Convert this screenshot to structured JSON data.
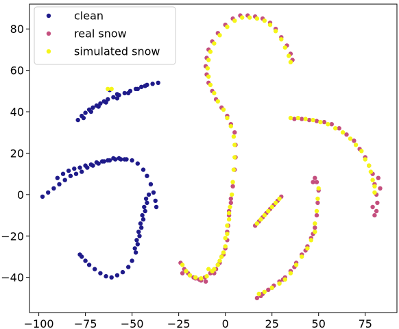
{
  "chart_data": {
    "type": "scatter",
    "title": "",
    "xlabel": "",
    "ylabel": "",
    "xlim": [
      -105,
      92
    ],
    "ylim": [
      -57,
      92
    ],
    "xticks": [
      -100,
      -75,
      -50,
      -25,
      0,
      25,
      50,
      75
    ],
    "yticks": [
      -40,
      -20,
      0,
      20,
      40,
      60,
      80
    ],
    "xtick_labels": [
      "−100",
      "−75",
      "−50",
      "−25",
      "0",
      "25",
      "50",
      "75"
    ],
    "ytick_labels": [
      "−40",
      "−20",
      "0",
      "20",
      "40",
      "60",
      "80"
    ],
    "grid": false,
    "legend_position": "top-left",
    "series": [
      {
        "name": "clean",
        "color": "#1f1b8a",
        "points": [
          [
            -98,
            -1
          ],
          [
            -95,
            1
          ],
          [
            -92,
            3
          ],
          [
            -89,
            5
          ],
          [
            -86,
            7
          ],
          [
            -83,
            9
          ],
          [
            -80,
            10
          ],
          [
            -77,
            11
          ],
          [
            -74,
            13
          ],
          [
            -71,
            14
          ],
          [
            -68,
            15
          ],
          [
            -65,
            16
          ],
          [
            -62,
            16.5
          ],
          [
            -59,
            17
          ],
          [
            -56,
            17
          ],
          [
            -53,
            17
          ],
          [
            -50,
            16.5
          ],
          [
            -47,
            15
          ],
          [
            -44,
            12
          ],
          [
            -42,
            9
          ],
          [
            -40,
            5
          ],
          [
            -38.5,
            1
          ],
          [
            -37.5,
            -3
          ],
          [
            -37,
            -6
          ],
          [
            -90,
            8
          ],
          [
            -87,
            10
          ],
          [
            -84,
            11.5
          ],
          [
            -81,
            12.5
          ],
          [
            -78,
            13
          ],
          [
            -75,
            14
          ],
          [
            -72,
            14.5
          ],
          [
            -69,
            15.5
          ],
          [
            -66,
            16
          ],
          [
            -63,
            16.5
          ],
          [
            -60,
            17.5
          ],
          [
            -57,
            17.5
          ],
          [
            -54,
            17
          ],
          [
            -41,
            0
          ],
          [
            -42,
            -4
          ],
          [
            -43,
            -8
          ],
          [
            -44,
            -12
          ],
          [
            -45,
            -16
          ],
          [
            -46,
            -20
          ],
          [
            -47,
            -24
          ],
          [
            -48,
            -28
          ],
          [
            -50,
            -32
          ],
          [
            -52,
            -35
          ],
          [
            -55,
            -37.5
          ],
          [
            -58,
            -39
          ],
          [
            -61,
            -40
          ],
          [
            -64,
            -39.5
          ],
          [
            -67,
            -38
          ],
          [
            -70,
            -36
          ],
          [
            -73,
            -34
          ],
          [
            -75,
            -32
          ],
          [
            -77,
            -30
          ],
          [
            -78,
            -29
          ],
          [
            -42.5,
            -2
          ],
          [
            -43.5,
            -6
          ],
          [
            -44.5,
            -10
          ],
          [
            -45.5,
            -14
          ],
          [
            -46.5,
            -18
          ],
          [
            -47.5,
            -22
          ],
          [
            -48.5,
            -26
          ],
          [
            -79,
            36
          ],
          [
            -77,
            38
          ],
          [
            -75,
            39.5
          ],
          [
            -73,
            41
          ],
          [
            -71,
            42
          ],
          [
            -69,
            43
          ],
          [
            -67,
            44
          ],
          [
            -65,
            45
          ],
          [
            -63,
            46
          ],
          [
            -60,
            47
          ],
          [
            -57,
            48
          ],
          [
            -54,
            49
          ],
          [
            -51,
            50
          ],
          [
            -48,
            51
          ],
          [
            -45,
            52
          ],
          [
            -42,
            53
          ],
          [
            -39,
            53.5
          ],
          [
            -36,
            54
          ],
          [
            -76,
            37
          ],
          [
            -72,
            40
          ],
          [
            -68,
            42.5
          ],
          [
            -64,
            44.5
          ],
          [
            -58,
            46.5
          ],
          [
            -52,
            49
          ],
          [
            -47,
            51
          ],
          [
            -43,
            52.5
          ],
          [
            -62,
            50.5
          ],
          [
            -58,
            48.5
          ]
        ]
      },
      {
        "name": "real snow",
        "color": "#c44f7e",
        "points": [
          [
            -24,
            -33
          ],
          [
            -22,
            -36
          ],
          [
            -20,
            -38
          ],
          [
            -17,
            -40
          ],
          [
            -14,
            -41
          ],
          [
            -11,
            -40
          ],
          [
            -8,
            -38
          ],
          [
            -5,
            -36
          ],
          [
            -3,
            -33
          ],
          [
            -1,
            -29
          ],
          [
            1,
            -22
          ],
          [
            1.5,
            -15
          ],
          [
            2,
            -8
          ],
          [
            3,
            -2
          ],
          [
            4,
            4
          ],
          [
            5,
            12
          ],
          [
            5.5,
            18
          ],
          [
            5.5,
            24
          ],
          [
            5,
            30
          ],
          [
            3,
            34
          ],
          [
            1,
            38
          ],
          [
            -2,
            42
          ],
          [
            -5,
            46
          ],
          [
            -7,
            50
          ],
          [
            -9,
            54
          ],
          [
            -10,
            58
          ],
          [
            -10.5,
            62
          ],
          [
            -10,
            66
          ],
          [
            -9,
            70
          ],
          [
            -7,
            74
          ],
          [
            -4,
            78
          ],
          [
            0,
            82
          ],
          [
            4,
            85
          ],
          [
            8,
            86.5
          ],
          [
            12,
            86.5
          ],
          [
            16,
            86
          ],
          [
            20,
            85
          ],
          [
            24,
            83
          ],
          [
            27,
            80
          ],
          [
            30,
            76
          ],
          [
            33,
            72
          ],
          [
            35,
            68
          ],
          [
            36,
            65
          ],
          [
            -6,
            -38
          ],
          [
            -4,
            -34
          ],
          [
            -2,
            -30
          ],
          [
            0,
            -26
          ],
          [
            1,
            -18
          ],
          [
            2,
            -10
          ],
          [
            3,
            -4
          ],
          [
            37,
            36.5
          ],
          [
            41,
            36.5
          ],
          [
            45,
            36
          ],
          [
            49,
            35.5
          ],
          [
            53,
            35
          ],
          [
            57,
            34
          ],
          [
            61,
            32
          ],
          [
            65,
            29
          ],
          [
            69,
            26
          ],
          [
            72,
            22
          ],
          [
            75,
            18
          ],
          [
            77,
            14
          ],
          [
            79,
            10
          ],
          [
            80,
            5
          ],
          [
            81,
            0
          ],
          [
            81.5,
            -4
          ],
          [
            81,
            -8
          ],
          [
            80,
            -10
          ],
          [
            82,
            8
          ],
          [
            83,
            3
          ],
          [
            79,
            -6
          ],
          [
            17,
            -50
          ],
          [
            20,
            -48
          ],
          [
            23,
            -46
          ],
          [
            26,
            -44
          ],
          [
            29,
            -42
          ],
          [
            32,
            -40
          ],
          [
            35,
            -37
          ],
          [
            38,
            -33
          ],
          [
            41,
            -29
          ],
          [
            44,
            -25
          ],
          [
            46,
            -21
          ],
          [
            48,
            -16
          ],
          [
            49,
            -10
          ],
          [
            49.5,
            -4
          ],
          [
            50,
            2
          ],
          [
            49,
            6
          ],
          [
            48,
            8
          ],
          [
            47,
            6
          ],
          [
            19,
            -49
          ],
          [
            25,
            -45
          ],
          [
            31,
            -41
          ],
          [
            37,
            -35
          ],
          [
            43,
            -27
          ],
          [
            47,
            -19
          ],
          [
            16,
            -15
          ],
          [
            18,
            -13
          ],
          [
            20,
            -11
          ],
          [
            22,
            -9
          ],
          [
            24,
            -7
          ],
          [
            26,
            -5
          ],
          [
            28,
            -3
          ],
          [
            30,
            -1
          ],
          [
            -10.5,
            -42
          ],
          [
            -13,
            -41.5
          ],
          [
            -16,
            -40.5
          ],
          [
            -19,
            -39
          ],
          [
            -23,
            -38
          ]
        ]
      },
      {
        "name": "simulated snow",
        "color": "#f5f518",
        "points": [
          [
            -23,
            -34
          ],
          [
            -21,
            -37
          ],
          [
            -19,
            -39
          ],
          [
            -16,
            -40
          ],
          [
            -13,
            -40.5
          ],
          [
            -10,
            -39.5
          ],
          [
            -7,
            -37
          ],
          [
            -4,
            -34
          ],
          [
            -2,
            -30
          ],
          [
            0,
            -25
          ],
          [
            1,
            -19
          ],
          [
            2,
            -12
          ],
          [
            2.5,
            -6
          ],
          [
            3.5,
            0
          ],
          [
            4,
            6
          ],
          [
            4.5,
            12
          ],
          [
            5,
            18
          ],
          [
            5,
            24
          ],
          [
            4.5,
            28
          ],
          [
            3,
            33
          ],
          [
            1,
            37
          ],
          [
            -1,
            41
          ],
          [
            -4,
            45
          ],
          [
            -6,
            49
          ],
          [
            -8,
            53
          ],
          [
            -9,
            57
          ],
          [
            -9.5,
            61
          ],
          [
            -9,
            65
          ],
          [
            -8,
            69
          ],
          [
            -6,
            73
          ],
          [
            -3,
            77
          ],
          [
            1,
            81
          ],
          [
            5,
            84
          ],
          [
            9,
            85.5
          ],
          [
            13,
            85.5
          ],
          [
            17,
            85
          ],
          [
            21,
            84
          ],
          [
            24,
            82
          ],
          [
            27,
            79
          ],
          [
            30,
            75
          ],
          [
            32,
            71
          ],
          [
            34,
            67
          ],
          [
            35,
            64
          ],
          [
            -9,
            -36
          ],
          [
            -6,
            -36
          ],
          [
            -3,
            -32
          ],
          [
            -1,
            -28
          ],
          [
            0,
            -21
          ],
          [
            1,
            -15
          ],
          [
            2,
            -9
          ],
          [
            35,
            37
          ],
          [
            39,
            37
          ],
          [
            43,
            36.5
          ],
          [
            47,
            36
          ],
          [
            51,
            35
          ],
          [
            55,
            34
          ],
          [
            59,
            32
          ],
          [
            63,
            30
          ],
          [
            67,
            27
          ],
          [
            70,
            24
          ],
          [
            73,
            21
          ],
          [
            75,
            17
          ],
          [
            77,
            14
          ],
          [
            78,
            11
          ],
          [
            79,
            7
          ],
          [
            80,
            4
          ],
          [
            80,
            1
          ],
          [
            48,
            -14
          ],
          [
            49,
            -8
          ],
          [
            49.5,
            -2
          ],
          [
            50,
            3
          ],
          [
            48,
            -18
          ],
          [
            46,
            -22
          ],
          [
            44,
            -26
          ],
          [
            41,
            -30
          ],
          [
            38,
            -34
          ],
          [
            35,
            -38
          ],
          [
            32,
            -41
          ],
          [
            29,
            -43
          ],
          [
            25,
            -45
          ],
          [
            21,
            -47
          ],
          [
            18,
            -48
          ],
          [
            17,
            -14
          ],
          [
            19,
            -12
          ],
          [
            21,
            -10
          ],
          [
            23,
            -8
          ],
          [
            25,
            -6
          ],
          [
            27,
            -4
          ],
          [
            29,
            -2
          ],
          [
            -63,
            51
          ],
          [
            -61,
            51
          ]
        ]
      }
    ]
  }
}
